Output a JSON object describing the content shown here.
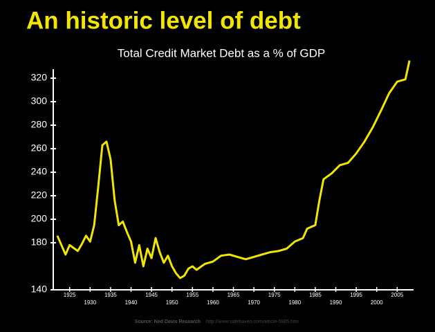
{
  "chart_data": {
    "type": "line",
    "title": "An historic level of debt",
    "subtitle": "Total Credit Market Debt as a % of GDP",
    "source": "Source: Ned Davis Research",
    "source_url": "http://www.safehaven.com/article-5905.htm",
    "x": [
      1922,
      1924,
      1925,
      1927,
      1928,
      1929,
      1930,
      1931,
      1932,
      1933,
      1934,
      1935,
      1936,
      1937,
      1938,
      1939,
      1940,
      1941,
      1942,
      1943,
      1944,
      1945,
      1946,
      1947,
      1948,
      1949,
      1950,
      1951,
      1952,
      1953,
      1954,
      1955,
      1956,
      1958,
      1960,
      1962,
      1964,
      1966,
      1968,
      1970,
      1972,
      1974,
      1976,
      1978,
      1980,
      1982,
      1983,
      1985,
      1986,
      1987,
      1989,
      1991,
      1993,
      1995,
      1997,
      1999,
      2001,
      2003,
      2005,
      2007,
      2008
    ],
    "series": [
      {
        "name": "Total Credit Market Debt",
        "color": "#f2e600",
        "values": [
          186,
          170,
          178,
          173,
          179,
          186,
          181,
          195,
          228,
          263,
          266,
          251,
          216,
          195,
          198,
          189,
          181,
          163,
          178,
          160,
          175,
          167,
          184,
          172,
          163,
          169,
          160,
          154,
          150,
          152,
          158,
          160,
          157,
          162,
          164,
          169,
          170,
          168,
          166,
          168,
          170,
          172,
          173,
          175,
          181,
          184,
          192,
          195,
          216,
          234,
          239,
          246,
          248,
          256,
          266,
          278,
          292,
          307,
          317,
          319,
          335
        ]
      }
    ],
    "xlim": [
      1921,
      2009
    ],
    "xticks": [
      1925,
      1930,
      1935,
      1940,
      1945,
      1950,
      1955,
      1960,
      1965,
      1970,
      1975,
      1980,
      1985,
      1990,
      1995,
      2000,
      2005
    ],
    "ylim": [
      140,
      340
    ],
    "yticks": [
      140,
      180,
      200,
      220,
      240,
      260,
      280,
      300,
      320
    ]
  }
}
